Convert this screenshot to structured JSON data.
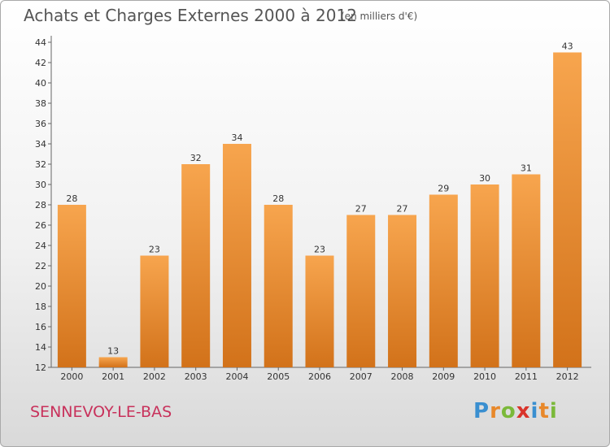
{
  "header": {
    "title": "Achats et Charges Externes 2000 à 2012",
    "subtitle": "(en milliers d'€)"
  },
  "footer": {
    "city": "SENNEVOY-LE-BAS",
    "brand": "Proxiti"
  },
  "colors": {
    "bar_top": "#f7a54e",
    "bar_bottom": "#d2721a",
    "city": "#c8315b"
  },
  "chart_data": {
    "type": "bar",
    "categories": [
      "2000",
      "2001",
      "2002",
      "2003",
      "2004",
      "2005",
      "2006",
      "2007",
      "2008",
      "2009",
      "2010",
      "2011",
      "2012"
    ],
    "values": [
      28,
      13,
      23,
      32,
      34,
      28,
      23,
      27,
      27,
      29,
      30,
      31,
      43
    ],
    "title": "Achats et Charges Externes 2000 à 2012",
    "subtitle": "(en milliers d'€)",
    "xlabel": "",
    "ylabel": "",
    "ylim": [
      12,
      44
    ],
    "yticks": [
      12,
      14,
      16,
      18,
      20,
      22,
      24,
      26,
      28,
      30,
      32,
      34,
      36,
      38,
      40,
      42,
      44
    ],
    "grid": false,
    "data_labels": true
  }
}
